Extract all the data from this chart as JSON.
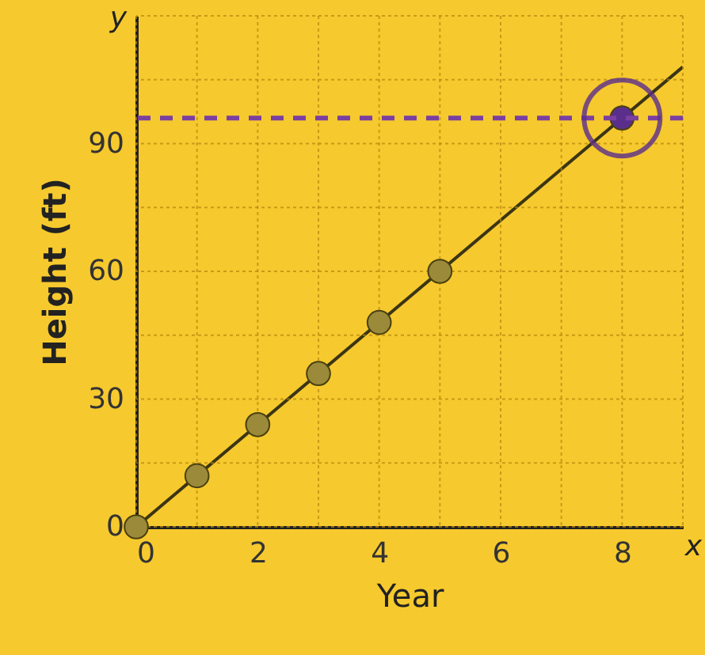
{
  "chart_data": {
    "type": "scatter",
    "xlabel": "Year",
    "ylabel": "Height (ft)",
    "annotations": [
      "x",
      "y"
    ],
    "series": [
      {
        "type": "line",
        "color": "#3b3515",
        "x": [
          0,
          9
        ],
        "values": [
          0,
          108
        ],
        "marker": "none"
      },
      {
        "color": "#9a8a3a",
        "x": [
          0,
          1,
          2,
          3,
          4,
          5
        ],
        "values": [
          0,
          12,
          24,
          36,
          48,
          60
        ],
        "marker": "circle"
      },
      {
        "color": "#5a2f8c",
        "x": [
          8
        ],
        "values": [
          96
        ],
        "marker": "circle"
      }
    ],
    "ref_lines": [
      {
        "axis": "y",
        "value": 96,
        "color": "#7a3fa0",
        "line_style": "dashed"
      }
    ],
    "xlim": [
      0,
      9
    ],
    "ylim": [
      0,
      120
    ],
    "xticks": [
      0,
      {
        "value": 1,
        "label": null
      },
      2,
      {
        "value": 3,
        "label": null
      },
      4,
      {
        "value": 5,
        "label": null
      },
      6,
      {
        "value": 7,
        "label": null
      },
      8,
      {
        "value": 9,
        "label": null
      }
    ],
    "yticks": [
      0,
      {
        "value": 15,
        "label": null
      },
      30,
      {
        "value": 45,
        "label": null
      },
      60,
      {
        "value": 75,
        "label": null
      },
      90,
      {
        "value": 105,
        "label": null
      },
      {
        "value": 120,
        "label": null
      }
    ],
    "grid": true
  }
}
